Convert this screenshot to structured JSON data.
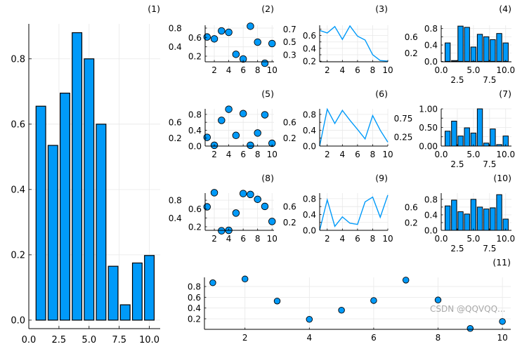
{
  "watermark": "CSDN @QQVQQ...",
  "colors": {
    "series": "#009af9",
    "stroke": "#000000",
    "grid": "#e8e8e8"
  },
  "chart_data": [
    {
      "title": "(1)",
      "type": "bar",
      "x": [
        1,
        2,
        3,
        4,
        5,
        6,
        7,
        8,
        9,
        10
      ],
      "values": [
        0.655,
        0.535,
        0.695,
        0.88,
        0.8,
        0.6,
        0.165,
        0.047,
        0.175,
        0.198
      ],
      "xlim": [
        0,
        10.9
      ],
      "ylim": [
        -0.026,
        0.907
      ],
      "xticks": [
        0,
        2.5,
        5,
        7.5,
        10
      ],
      "xticklabels": [
        "0.0",
        "2.5",
        "5.0",
        "7.5",
        "10.0"
      ],
      "yticks": [
        0,
        0.2,
        0.4,
        0.6,
        0.8
      ],
      "yticklabels": [
        "0.0",
        "0.2",
        "0.4",
        "0.6",
        "0.8"
      ],
      "grid": true
    },
    {
      "title": "(2)",
      "type": "scatter",
      "x": [
        1,
        2,
        3,
        4,
        5,
        6,
        7,
        8,
        9,
        10
      ],
      "values": [
        0.61,
        0.57,
        0.74,
        0.71,
        0.24,
        0.14,
        0.84,
        0.5,
        0.05,
        0.47
      ],
      "xlim": [
        0.73,
        10.27
      ],
      "ylim": [
        0.08,
        0.86
      ],
      "xticks": [
        2,
        4,
        6,
        8,
        10
      ],
      "xticklabels": [
        "2",
        "4",
        "6",
        "8",
        "10"
      ],
      "yticks": [
        0.2,
        0.4,
        0.6,
        0.8
      ],
      "yticklabels": [
        "0.2",
        "0.4",
        "0.6",
        "0.8"
      ],
      "grid": true
    },
    {
      "title": "(3)",
      "type": "line",
      "x": [
        1,
        2,
        3,
        4,
        5,
        6,
        7,
        8,
        9,
        10
      ],
      "values": [
        0.68,
        0.64,
        0.74,
        0.54,
        0.75,
        0.59,
        0.53,
        0.3,
        0.21,
        0.2
      ],
      "xlim": [
        1,
        10
      ],
      "ylim": [
        0.19,
        0.76
      ],
      "xticks": [
        2,
        4,
        6,
        8,
        10
      ],
      "xticklabels": [
        "2",
        "4",
        "6",
        "8",
        "10"
      ],
      "yticks": [
        0.2,
        0.3,
        0.4,
        0.5,
        0.6,
        0.7
      ],
      "yticklabels": [
        "0.2",
        "0.3",
        "0.4",
        "0.5",
        "0.6",
        "0.7"
      ],
      "grid": true
    },
    {
      "title": "(4)",
      "type": "bar",
      "x": [
        1,
        2,
        3,
        4,
        5,
        6,
        7,
        8,
        9,
        10
      ],
      "values": [
        0.45,
        0.02,
        0.86,
        0.83,
        0.35,
        0.66,
        0.6,
        0.53,
        0.68,
        0.45
      ],
      "xlim": [
        0,
        10.9
      ],
      "ylim": [
        -0.01,
        0.88
      ],
      "xticks": [
        0,
        2.5,
        5,
        7.5,
        10
      ],
      "xticklabels": [
        "0.0",
        "2.5",
        "5.0",
        "7.5",
        "10.0"
      ],
      "yticks": [
        0,
        0.2,
        0.4,
        0.6,
        0.8
      ],
      "yticklabels": [
        "0.0",
        "0.2",
        "0.4",
        "0.6",
        "0.8"
      ],
      "grid": true
    },
    {
      "title": "(5)",
      "type": "scatter",
      "x": [
        1,
        2,
        3,
        4,
        5,
        6,
        7,
        8,
        9,
        10
      ],
      "values": [
        0.22,
        0.02,
        0.65,
        0.93,
        0.27,
        0.82,
        0.02,
        0.33,
        0.79,
        0.07
      ],
      "xlim": [
        0.73,
        10.27
      ],
      "ylim": [
        0,
        0.94
      ],
      "xticks": [
        2,
        4,
        6,
        8,
        10
      ],
      "xticklabels": [
        "2",
        "4",
        "6",
        "8",
        "10"
      ],
      "yticks": [
        0,
        0.2,
        0.4,
        0.6,
        0.8
      ],
      "yticklabels": [
        "0.0",
        "0.2",
        "0.4",
        "0.6",
        "0.8"
      ],
      "grid": true
    },
    {
      "title": "(6)",
      "type": "line",
      "x": [
        1,
        2,
        3,
        4,
        5,
        6,
        7,
        8,
        9,
        10
      ],
      "values": [
        0.0,
        0.93,
        0.57,
        0.9,
        0.65,
        0.42,
        0.18,
        0.77,
        0.4,
        0.1
      ],
      "xlim": [
        1,
        10
      ],
      "ylim": [
        0,
        0.94
      ],
      "xticks": [
        2,
        4,
        6,
        8,
        10
      ],
      "xticklabels": [
        "2",
        "4",
        "6",
        "8",
        "10"
      ],
      "yticks": [
        0,
        0.2,
        0.4,
        0.6,
        0.8
      ],
      "yticklabels": [
        "0.0",
        "0.2",
        "0.4",
        "0.6",
        "0.8"
      ],
      "grid": true
    },
    {
      "title": "(7)",
      "type": "bar",
      "x": [
        1,
        2,
        3,
        4,
        5,
        6,
        7,
        8,
        9,
        10
      ],
      "values": [
        0.4,
        0.67,
        0.27,
        0.49,
        0.35,
        1.0,
        0.08,
        0.46,
        0.04,
        0.27
      ],
      "xlim": [
        0,
        10.9
      ],
      "ylim": [
        0,
        1.0
      ],
      "xticks": [
        0,
        2.5,
        5,
        7.5,
        10
      ],
      "xticklabels": [
        "0.0",
        "2.5",
        "5.0",
        "7.5",
        "10.0"
      ],
      "yticks": [
        0,
        0.25,
        0.5,
        0.75,
        1.0
      ],
      "yticklabels": [
        "0.00",
        "0.25",
        "0.50",
        "0.75",
        "1.00"
      ],
      "grid": true
    },
    {
      "title": "(8)",
      "type": "scatter",
      "x": [
        1,
        2,
        3,
        4,
        5,
        6,
        7,
        8,
        9,
        10
      ],
      "values": [
        0.65,
        0.97,
        0.11,
        0.12,
        0.51,
        0.95,
        0.93,
        0.82,
        0.66,
        0.32
      ],
      "xlim": [
        0.73,
        10.27
      ],
      "ylim": [
        0.12,
        0.96
      ],
      "xticks": [
        2,
        4,
        6,
        8,
        10
      ],
      "xticklabels": [
        "2",
        "4",
        "6",
        "8",
        "10"
      ],
      "yticks": [
        0.2,
        0.4,
        0.6,
        0.8
      ],
      "yticklabels": [
        "0.2",
        "0.4",
        "0.6",
        "0.8"
      ],
      "grid": true
    },
    {
      "title": "(9)",
      "type": "line",
      "x": [
        1,
        2,
        3,
        4,
        5,
        6,
        7,
        8,
        9,
        10
      ],
      "values": [
        0.0,
        0.77,
        0.1,
        0.34,
        0.18,
        0.15,
        0.72,
        0.84,
        0.33,
        0.89
      ],
      "xlim": [
        1,
        10
      ],
      "ylim": [
        0,
        0.94
      ],
      "xticks": [
        2,
        4,
        6,
        8,
        10
      ],
      "xticklabels": [
        "2",
        "4",
        "6",
        "8",
        "10"
      ],
      "yticks": [
        0,
        0.2,
        0.4,
        0.6,
        0.8
      ],
      "yticklabels": [
        "0.0",
        "0.2",
        "0.4",
        "0.6",
        "0.8"
      ],
      "grid": true
    },
    {
      "title": "(10)",
      "type": "bar",
      "x": [
        1,
        2,
        3,
        4,
        5,
        6,
        7,
        8,
        9,
        10
      ],
      "values": [
        0.63,
        0.78,
        0.48,
        0.42,
        0.8,
        0.6,
        0.55,
        0.58,
        0.92,
        0.29
      ],
      "xlim": [
        0,
        10.9
      ],
      "ylim": [
        0,
        0.96
      ],
      "xticks": [
        0,
        2.5,
        5,
        7.5,
        10
      ],
      "xticklabels": [
        "0.0",
        "2.5",
        "5.0",
        "7.5",
        "10.0"
      ],
      "yticks": [
        0,
        0.2,
        0.4,
        0.6,
        0.8
      ],
      "yticklabels": [
        "0.0",
        "0.2",
        "0.4",
        "0.6",
        "0.8"
      ],
      "grid": true
    },
    {
      "title": "(11)",
      "type": "scatter",
      "x": [
        1,
        2,
        3,
        4,
        5,
        6,
        7,
        8,
        9,
        10
      ],
      "values": [
        0.87,
        0.94,
        0.53,
        0.19,
        0.36,
        0.54,
        0.92,
        0.55,
        0.02,
        0.15
      ],
      "xlim": [
        0.74,
        10.26
      ],
      "ylim": [
        0.004,
        0.97
      ],
      "xticks": [
        2,
        4,
        6,
        8,
        10
      ],
      "xticklabels": [
        "2",
        "4",
        "6",
        "8",
        "10"
      ],
      "yticks": [
        0.2,
        0.4,
        0.6,
        0.8
      ],
      "yticklabels": [
        "0.2",
        "0.4",
        "0.6",
        "0.8"
      ],
      "grid": true
    }
  ]
}
